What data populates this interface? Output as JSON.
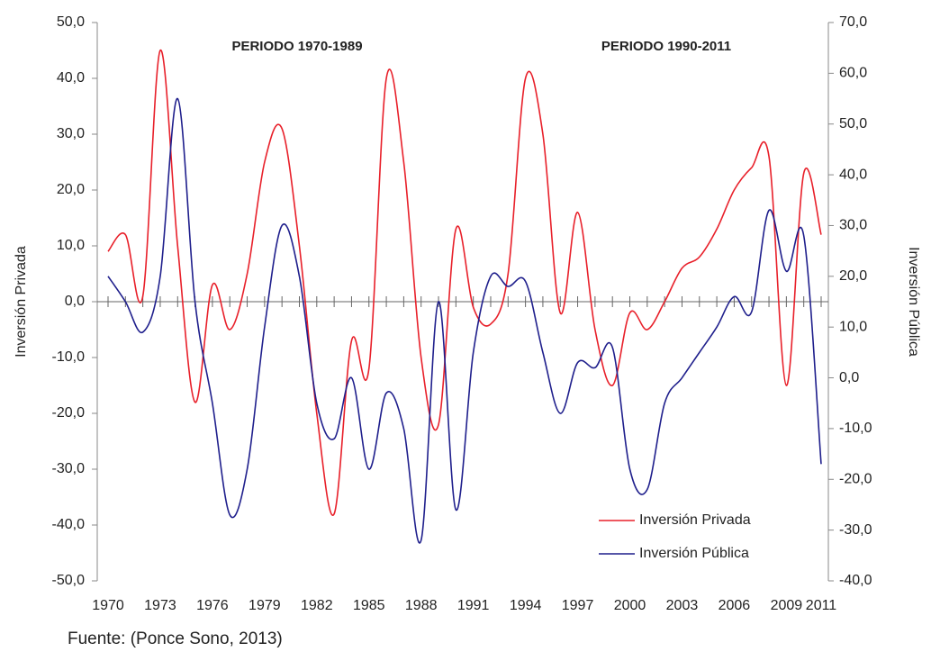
{
  "chart_data": {
    "type": "line",
    "annotations": [
      "PERIODO 1970-1989",
      "PERIODO 1990-2011"
    ],
    "ylabel": "Inversión Privada",
    "y2label": "Inversión Pública",
    "source": "Fuente: (Ponce Sono, 2013)",
    "x": [
      1970,
      1971,
      1972,
      1973,
      1974,
      1975,
      1976,
      1977,
      1978,
      1979,
      1980,
      1981,
      1982,
      1983,
      1984,
      1985,
      1986,
      1987,
      1988,
      1989,
      1990,
      1991,
      1992,
      1993,
      1994,
      1995,
      1996,
      1997,
      1998,
      1999,
      2000,
      2001,
      2002,
      2003,
      2004,
      2005,
      2006,
      2007,
      2008,
      2009,
      2010,
      2011
    ],
    "xlim": [
      1970,
      2011
    ],
    "xticks": [
      1970,
      1973,
      1976,
      1979,
      1982,
      1985,
      1988,
      1991,
      1994,
      1997,
      2000,
      2003,
      2006,
      2009,
      2011
    ],
    "ylim": [
      -50,
      50
    ],
    "yticks": [
      {
        "value": -50,
        "label": "-50,0"
      },
      {
        "value": -40,
        "label": "-40,0"
      },
      {
        "value": -30,
        "label": "-30,0"
      },
      {
        "value": -20,
        "label": "-20,0"
      },
      {
        "value": -10,
        "label": "-10,0"
      },
      {
        "value": 0,
        "label": "0,0"
      },
      {
        "value": 10,
        "label": "10,0"
      },
      {
        "value": 20,
        "label": "20,0"
      },
      {
        "value": 30,
        "label": "30,0"
      },
      {
        "value": 40,
        "label": "40,0"
      },
      {
        "value": 50,
        "label": "50,0"
      }
    ],
    "y2lim": [
      -40,
      70
    ],
    "y2ticks": [
      {
        "value": -40,
        "label": "-40,0"
      },
      {
        "value": -30,
        "label": "-30,0"
      },
      {
        "value": -20,
        "label": "-20,0"
      },
      {
        "value": -10,
        "label": "-10,0"
      },
      {
        "value": 0,
        "label": "0,0"
      },
      {
        "value": 10,
        "label": "10,0"
      },
      {
        "value": 20,
        "label": "20,0"
      },
      {
        "value": 30,
        "label": "30,0"
      },
      {
        "value": 40,
        "label": "40,0"
      },
      {
        "value": 50,
        "label": "50,0"
      },
      {
        "value": 60,
        "label": "60,0"
      },
      {
        "value": 70,
        "label": "70,0"
      }
    ],
    "legend": "lower right",
    "series": [
      {
        "name": "Inversión Privada",
        "color": "#e8202a",
        "values": [
          9,
          12,
          1,
          45,
          10,
          -18,
          3,
          -5,
          5,
          25,
          31,
          10,
          -20,
          -38,
          -7,
          -12,
          40,
          25,
          -10,
          -22,
          13,
          -1,
          -4,
          5,
          40,
          30,
          -2,
          16,
          -5,
          -15,
          -2,
          -5,
          0,
          6,
          8,
          13,
          20,
          24,
          26,
          -15,
          23,
          12
        ]
      },
      {
        "name": "Inversión Pública",
        "color": "#1f1f8c",
        "axis": "y2",
        "values": [
          20,
          15,
          9,
          20,
          55,
          15,
          -5,
          -27,
          -18,
          10,
          30,
          20,
          -5,
          -12,
          0,
          -18,
          -3,
          -10,
          -32,
          15,
          -26,
          5,
          20,
          18,
          19,
          5,
          -7,
          3,
          2,
          6,
          -18,
          -22,
          -5,
          0,
          5,
          10,
          16,
          13,
          33,
          21,
          28,
          -17
        ]
      }
    ]
  }
}
